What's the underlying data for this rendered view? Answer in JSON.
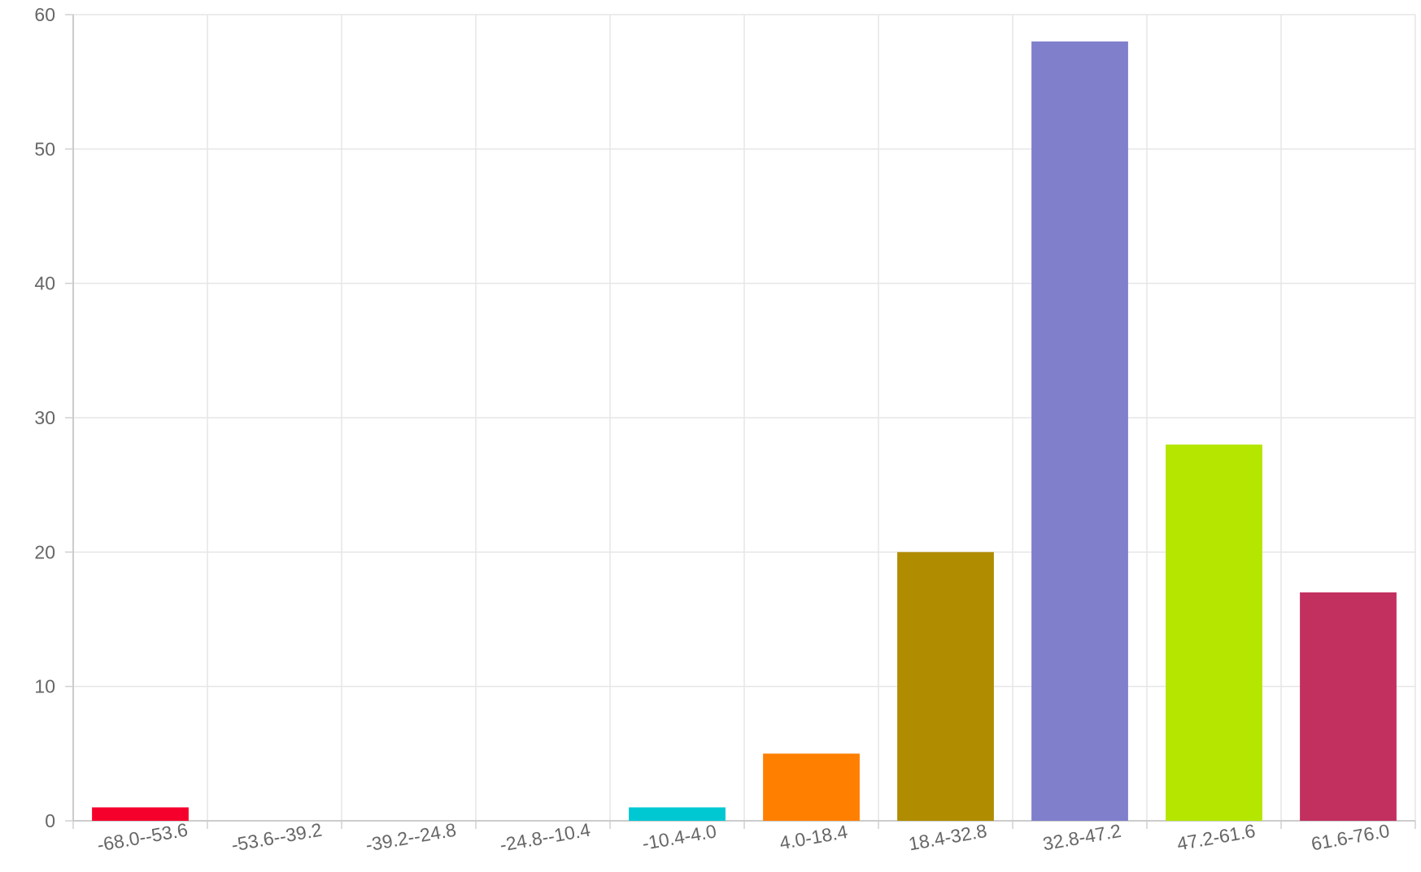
{
  "chart_data": {
    "type": "bar",
    "title": "",
    "xlabel": "",
    "ylabel": "",
    "categories": [
      "-68.0--53.6",
      "-53.6--39.2",
      "-39.2--24.8",
      "-24.8--10.4",
      "-10.4-4.0",
      "4.0-18.4",
      "18.4-32.8",
      "32.8-47.2",
      "47.2-61.6",
      "61.6-76.0"
    ],
    "values": [
      1,
      0,
      0,
      0,
      1,
      5,
      20,
      58,
      28,
      17
    ],
    "colors": [
      "#f5002c",
      "#f5a0b4",
      "#1f77b4",
      "#9467bd",
      "#00c8d2",
      "#ff7f00",
      "#b08c00",
      "#7f7fcc",
      "#b4e600",
      "#c23060"
    ],
    "ylim": [
      0,
      60
    ],
    "yticks": [
      0,
      10,
      20,
      30,
      40,
      50,
      60
    ],
    "grid": true,
    "legend": "none"
  }
}
